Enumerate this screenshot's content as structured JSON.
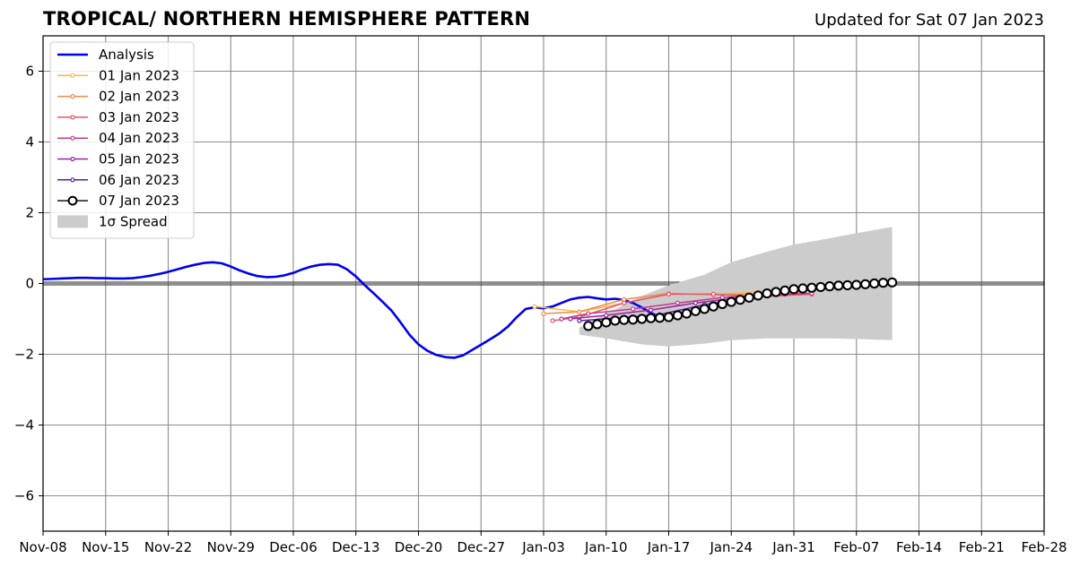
{
  "chart_data": {
    "type": "line",
    "title": "TROPICAL/ NORTHERN HEMISPHERE PATTERN",
    "subtitle": "Updated for Sat 07 Jan 2023",
    "xlabel": "",
    "ylabel": "",
    "xlim": [
      "2022-11-08",
      "2023-02-28"
    ],
    "ylim": [
      -7,
      7
    ],
    "x_ticks": [
      "2022-11-08",
      "2022-11-15",
      "2022-11-22",
      "2022-11-29",
      "2022-12-06",
      "2022-12-13",
      "2022-12-20",
      "2022-12-27",
      "2023-01-03",
      "2023-01-10",
      "2023-01-17",
      "2023-01-24",
      "2023-01-31",
      "2023-02-07",
      "2023-02-14",
      "2023-02-21",
      "2023-02-28"
    ],
    "x_tick_labels": [
      "Nov-08",
      "Nov-15",
      "Nov-22",
      "Nov-29",
      "Dec-06",
      "Dec-13",
      "Dec-20",
      "Dec-27",
      "Jan-03",
      "Jan-10",
      "Jan-17",
      "Jan-24",
      "Jan-31",
      "Feb-07",
      "Feb-14",
      "Feb-21",
      "Feb-28"
    ],
    "y_ticks": [
      -6,
      -4,
      -2,
      0,
      2,
      4,
      6
    ],
    "y_tick_labels": [
      "−6",
      "−4",
      "−2",
      "0",
      "2",
      "4",
      "6"
    ],
    "grid": true,
    "zero_line": true,
    "legend_position": "top-left",
    "legend_spread_label": "1σ Spread",
    "analysis": {
      "name": "Analysis",
      "color": "#0000ee",
      "start_date": "2022-11-08",
      "values": [
        0.12,
        0.13,
        0.14,
        0.15,
        0.16,
        0.16,
        0.15,
        0.15,
        0.14,
        0.14,
        0.15,
        0.18,
        0.22,
        0.27,
        0.33,
        0.4,
        0.47,
        0.53,
        0.58,
        0.6,
        0.57,
        0.48,
        0.37,
        0.28,
        0.21,
        0.18,
        0.19,
        0.23,
        0.3,
        0.4,
        0.48,
        0.53,
        0.55,
        0.53,
        0.4,
        0.2,
        -0.05,
        -0.28,
        -0.52,
        -0.77,
        -1.1,
        -1.45,
        -1.72,
        -1.9,
        -2.02,
        -2.08,
        -2.1,
        -2.03,
        -1.88,
        -1.73,
        -1.58,
        -1.42,
        -1.22,
        -0.95,
        -0.72,
        -0.67,
        -0.7,
        -0.65,
        -0.55,
        -0.45,
        -0.4,
        -0.38,
        -0.42,
        -0.45,
        -0.43,
        -0.47,
        -0.55,
        -0.68,
        -0.83,
        -0.95,
        -1.0
      ]
    },
    "spread": {
      "name": "1σ Spread",
      "color": "#cccccc",
      "x": [
        "2023-01-07",
        "2023-01-10",
        "2023-01-14",
        "2023-01-17",
        "2023-01-21",
        "2023-01-24",
        "2023-01-28",
        "2023-01-31",
        "2023-02-04",
        "2023-02-07",
        "2023-02-11"
      ],
      "upper": [
        -1.25,
        -0.85,
        -0.35,
        -0.05,
        0.25,
        0.6,
        0.9,
        1.1,
        1.28,
        1.42,
        1.6
      ],
      "lower": [
        -1.45,
        -1.55,
        -1.72,
        -1.78,
        -1.7,
        -1.6,
        -1.55,
        -1.55,
        -1.55,
        -1.57,
        -1.6
      ]
    },
    "series": [
      {
        "name": "01 Jan 2023",
        "color": "#f5b942",
        "x": [
          "2023-01-02",
          "2023-01-07",
          "2023-01-12",
          "2023-01-17",
          "2023-01-22",
          "2023-01-27",
          "2023-02-01",
          "2023-02-06"
        ],
        "values": [
          -0.65,
          -0.8,
          -0.55,
          -0.3,
          -0.3,
          -0.25,
          -0.15,
          0.0
        ]
      },
      {
        "name": "02 Jan 2023",
        "color": "#f08a4b",
        "x": [
          "2023-01-03",
          "2023-01-07",
          "2023-01-12",
          "2023-01-17",
          "2023-01-22",
          "2023-01-27",
          "2023-02-01"
        ],
        "values": [
          -0.85,
          -0.8,
          -0.45,
          -0.28,
          -0.32,
          -0.3,
          -0.25
        ]
      },
      {
        "name": "03 Jan 2023",
        "color": "#e3566b",
        "x": [
          "2023-01-04",
          "2023-01-07",
          "2023-01-12",
          "2023-01-17",
          "2023-01-22",
          "2023-01-27",
          "2023-02-02"
        ],
        "values": [
          -1.05,
          -0.95,
          -0.55,
          -0.3,
          -0.3,
          -0.38,
          -0.3
        ]
      },
      {
        "name": "04 Jan 2023",
        "color": "#c03a8a",
        "x": [
          "2023-01-05",
          "2023-01-08",
          "2023-01-13",
          "2023-01-18",
          "2023-01-23",
          "2023-01-28",
          "2023-02-02"
        ],
        "values": [
          -1.0,
          -0.85,
          -0.72,
          -0.55,
          -0.4,
          -0.32,
          -0.28
        ]
      },
      {
        "name": "05 Jan 2023",
        "color": "#9a23a0",
        "x": [
          "2023-01-06",
          "2023-01-10",
          "2023-01-15",
          "2023-01-20",
          "2023-01-25",
          "2023-01-30"
        ],
        "values": [
          -1.0,
          -0.9,
          -0.75,
          -0.55,
          -0.4,
          -0.3
        ]
      },
      {
        "name": "06 Jan 2023",
        "color": "#5a1aa5",
        "x": [
          "2023-01-07",
          "2023-01-11",
          "2023-01-16",
          "2023-01-21",
          "2023-01-26"
        ],
        "values": [
          -1.05,
          -0.98,
          -0.88,
          -0.6,
          -0.4
        ]
      },
      {
        "name": "07 Jan 2023",
        "color": "#000000",
        "marker": "open-circle",
        "start_date": "2023-01-08",
        "values": [
          -1.2,
          -1.15,
          -1.1,
          -1.05,
          -1.03,
          -1.02,
          -1.0,
          -0.98,
          -0.97,
          -0.95,
          -0.9,
          -0.85,
          -0.78,
          -0.72,
          -0.65,
          -0.58,
          -0.52,
          -0.46,
          -0.4,
          -0.34,
          -0.28,
          -0.24,
          -0.2,
          -0.16,
          -0.14,
          -0.12,
          -0.1,
          -0.08,
          -0.06,
          -0.05,
          -0.04,
          -0.02,
          0.0,
          0.02,
          0.03
        ]
      }
    ]
  }
}
